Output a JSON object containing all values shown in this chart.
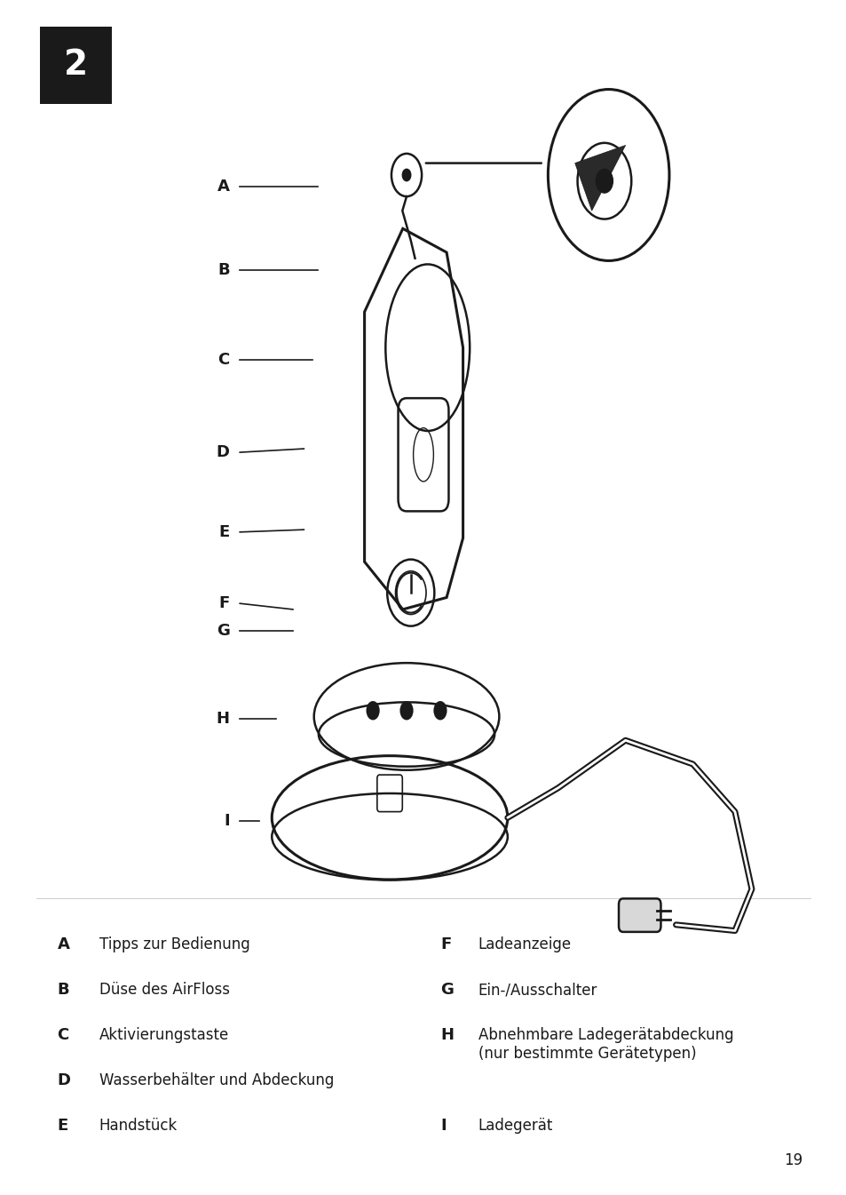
{
  "page_number": "19",
  "step_number": "2",
  "background_color": "#ffffff",
  "text_color": "#1a1a1a",
  "legend_left": [
    [
      "A",
      "Tipps zur Bedienung"
    ],
    [
      "B",
      "Düse des AirFloss"
    ],
    [
      "C",
      "Aktivierungstaste"
    ],
    [
      "D",
      "Wasserbehälter und Abdeckung"
    ],
    [
      "E",
      "Handstück"
    ]
  ],
  "legend_right": [
    [
      "F",
      "Ladeanzeige"
    ],
    [
      "G",
      "Ein-/Ausschalter"
    ],
    [
      "H",
      "Abnehmbare Ladegerätabdeckung\n(nur bestimmte Gerätetypen)"
    ],
    [
      "I",
      "Ladegerät"
    ]
  ]
}
